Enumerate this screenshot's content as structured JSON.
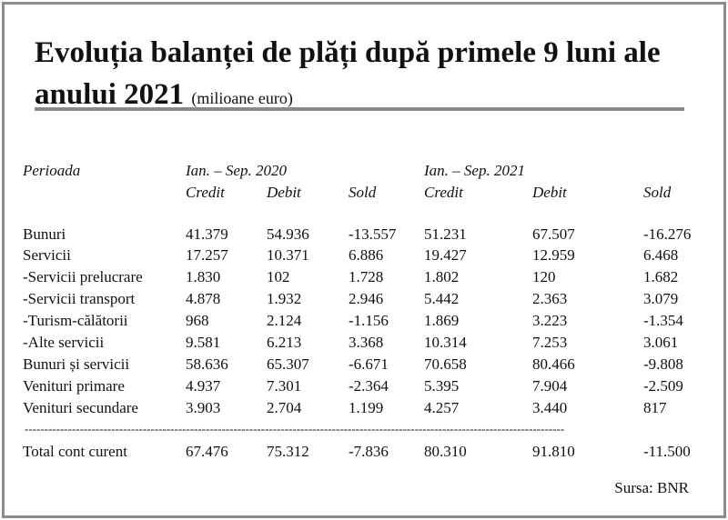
{
  "title": {
    "main": "Evoluția balanței de plăți după primele 9 luni ale anului 2021",
    "unit": "(milioane euro)"
  },
  "table": {
    "period_label": "Perioada",
    "period_2020": "Ian. – Sep. 2020",
    "period_2021": "Ian. – Sep. 2021",
    "col_credit": "Credit",
    "col_debit": "Debit",
    "col_sold": "Sold",
    "rows": [
      {
        "label": "Bunuri",
        "c20": "41.379",
        "d20": "54.936",
        "s20": "-13.557",
        "c21": "51.231",
        "d21": "67.507",
        "s21": "-16.276"
      },
      {
        "label": "Servicii",
        "c20": "17.257",
        "d20": "10.371",
        "s20": "6.886",
        "c21": "19.427",
        "d21": "12.959",
        "s21": "6.468"
      },
      {
        "label": "-Servicii prelucrare",
        "c20": "1.830",
        "d20": "102",
        "s20": "1.728",
        "c21": "1.802",
        "d21": "120",
        "s21": "1.682"
      },
      {
        "label": "-Servicii transport",
        "c20": "4.878",
        "d20": "1.932",
        "s20": "2.946",
        "c21": "5.442",
        "d21": "2.363",
        "s21": "3.079"
      },
      {
        "label": "-Turism-călătorii",
        "c20": "968",
        "d20": "2.124",
        "s20": "-1.156",
        "c21": "1.869",
        "d21": "3.223",
        "s21": "-1.354"
      },
      {
        "label": "-Alte servicii",
        "c20": "9.581",
        "d20": "6.213",
        "s20": "3.368",
        "c21": "10.314",
        "d21": "7.253",
        "s21": "3.061"
      },
      {
        "label": "Bunuri și servicii",
        "c20": "58.636",
        "d20": "65.307",
        "s20": "-6.671",
        "c21": "70.658",
        "d21": "80.466",
        "s21": "-9.808"
      },
      {
        "label": "Venituri primare",
        "c20": "4.937",
        "d20": "7.301",
        "s20": "-2.364",
        "c21": "5.395",
        "d21": "7.904",
        "s21": "-2.509"
      },
      {
        "label": "Venituri secundare",
        "c20": "3.903",
        "d20": "2.704",
        "s20": "1.199",
        "c21": "4.257",
        "d21": "3.440",
        "s21": "817"
      }
    ],
    "separator": "-----------------------------------------------------------------------------------------------------------------------------------------",
    "total": {
      "label": "Total cont curent",
      "c20": "67.476",
      "d20": "75.312",
      "s20": "-7.836",
      "c21": "80.310",
      "d21": "91.810",
      "s21": "-11.500"
    }
  },
  "source": "Sursa: BNR"
}
